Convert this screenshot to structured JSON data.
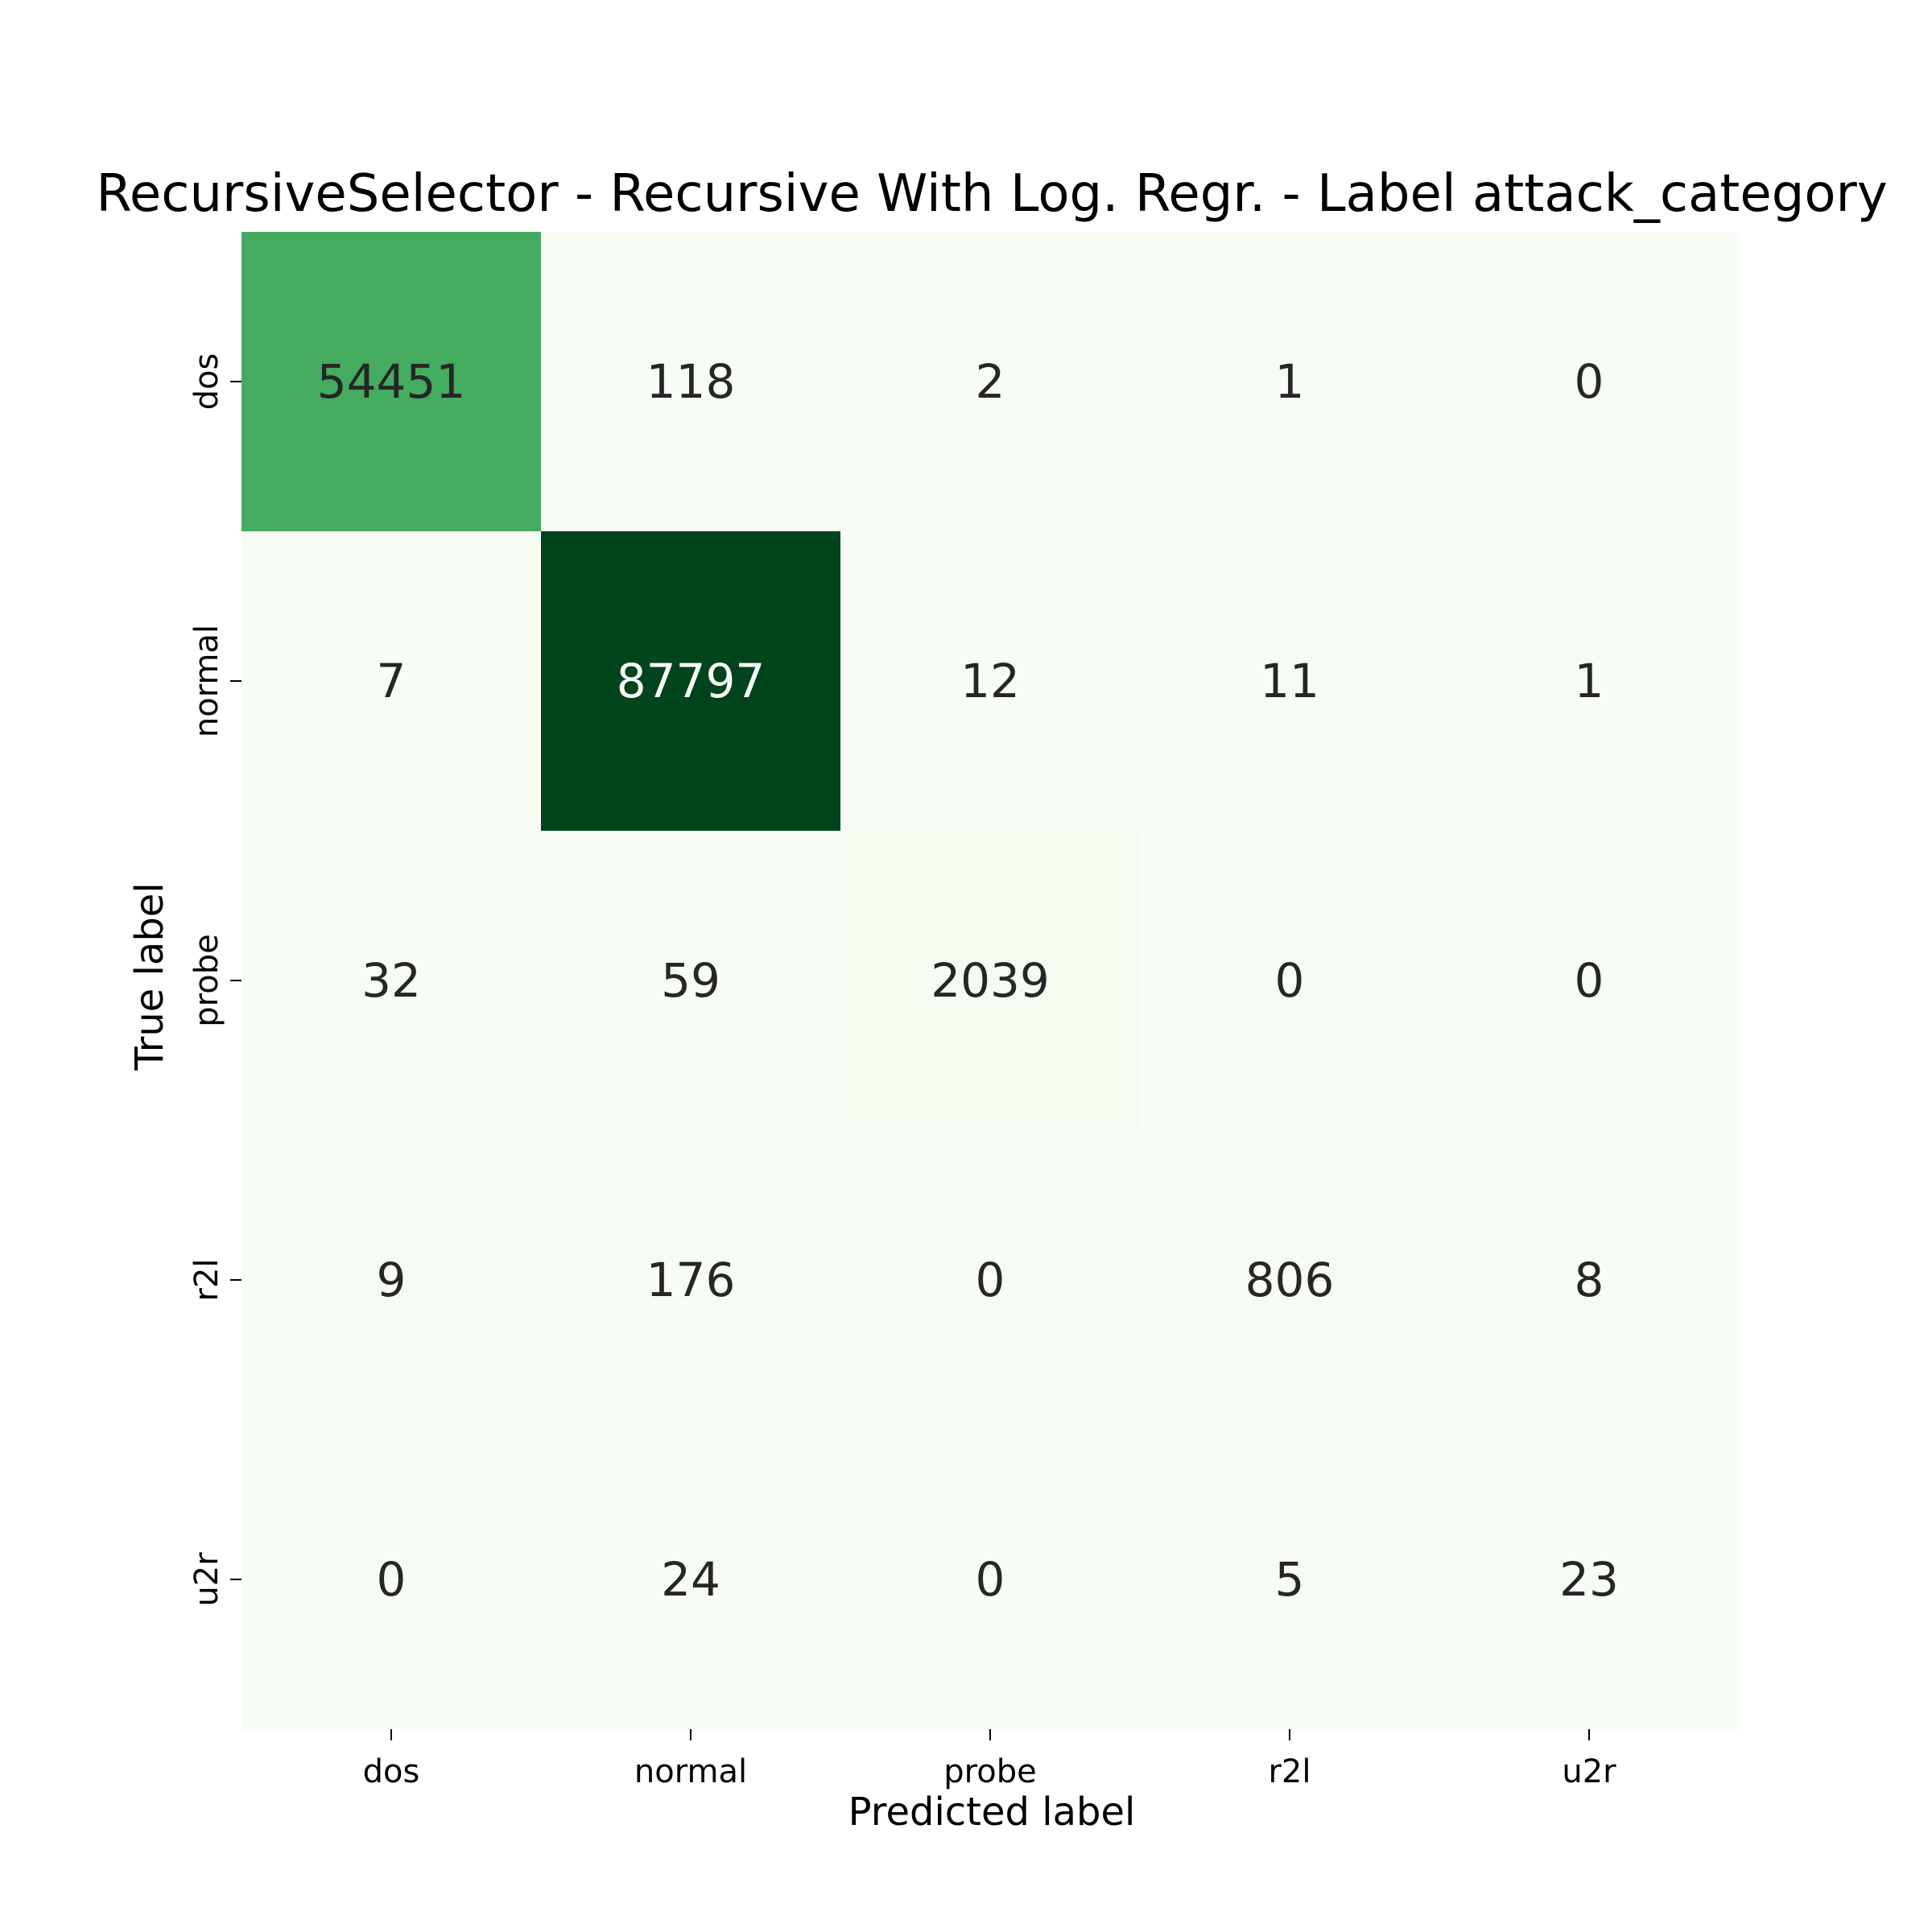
{
  "chart_data": {
    "type": "heatmap",
    "title": "RecursiveSelector - Recursive With Log. Regr. - Label attack_category",
    "xlabel": "Predicted label",
    "ylabel": "True label",
    "x_categories": [
      "dos",
      "normal",
      "probe",
      "r2l",
      "u2r"
    ],
    "y_categories": [
      "dos",
      "normal",
      "probe",
      "r2l",
      "u2r"
    ],
    "values": [
      [
        54451,
        118,
        2,
        1,
        0
      ],
      [
        7,
        87797,
        12,
        11,
        1
      ],
      [
        32,
        59,
        2039,
        0,
        0
      ],
      [
        9,
        176,
        0,
        806,
        8
      ],
      [
        0,
        24,
        0,
        5,
        23
      ]
    ],
    "colormap": "Greens",
    "colorbar": false,
    "grid": false,
    "colors": {
      "low": "#f7fcf5",
      "high": "#00441b",
      "text_dark": "#262626",
      "text_light": "#ffffff"
    }
  }
}
